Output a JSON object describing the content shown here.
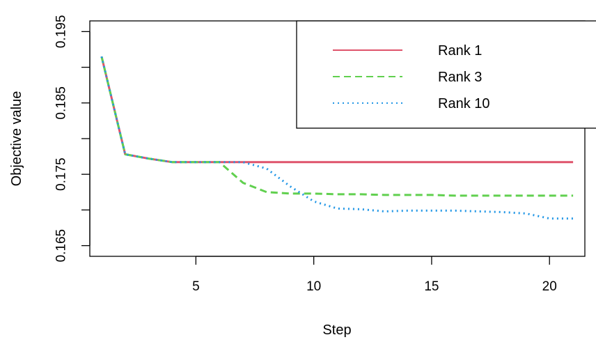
{
  "chart_data": {
    "type": "line",
    "title": "",
    "xlabel": "Step",
    "ylabel": "Objective value",
    "xlim": [
      0.5,
      21.5
    ],
    "ylim": [
      0.1635,
      0.1965
    ],
    "x_ticks": [
      5,
      10,
      15,
      20
    ],
    "y_ticks": [
      0.165,
      0.17,
      0.175,
      0.18,
      0.185,
      0.19,
      0.195
    ],
    "y_tick_labels": [
      "0.165",
      "",
      "0.175",
      "",
      "0.185",
      "",
      "0.195"
    ],
    "grid": false,
    "legend_position": "top-right",
    "x": [
      1,
      2,
      3,
      4,
      5,
      6,
      7,
      8,
      9,
      10,
      11,
      12,
      13,
      14,
      15,
      16,
      17,
      18,
      19,
      20,
      21
    ],
    "series": [
      {
        "name": "Rank 1",
        "color": "#DF536B",
        "dash": "solid",
        "values": [
          0.1915,
          0.1778,
          0.1772,
          0.1767,
          0.1767,
          0.1767,
          0.1767,
          0.1767,
          0.1767,
          0.1767,
          0.1767,
          0.1767,
          0.1767,
          0.1767,
          0.1767,
          0.1767,
          0.1767,
          0.1767,
          0.1767,
          0.1767,
          0.1767
        ]
      },
      {
        "name": "Rank 3",
        "color": "#61D04F",
        "dash": "dashed",
        "values": [
          0.1915,
          0.1778,
          0.1772,
          0.1767,
          0.1767,
          0.1767,
          0.1738,
          0.1725,
          0.1723,
          0.1723,
          0.1722,
          0.1722,
          0.1721,
          0.1721,
          0.1721,
          0.172,
          0.172,
          0.172,
          0.172,
          0.172,
          0.172
        ]
      },
      {
        "name": "Rank 10",
        "color": "#2297E6",
        "dash": "dotted",
        "values": [
          0.1915,
          0.1778,
          0.1772,
          0.1767,
          0.1767,
          0.1767,
          0.1767,
          0.1758,
          0.1733,
          0.1712,
          0.1702,
          0.1701,
          0.1698,
          0.1699,
          0.1699,
          0.1699,
          0.1698,
          0.1697,
          0.1695,
          0.1688,
          0.1688
        ]
      }
    ]
  }
}
